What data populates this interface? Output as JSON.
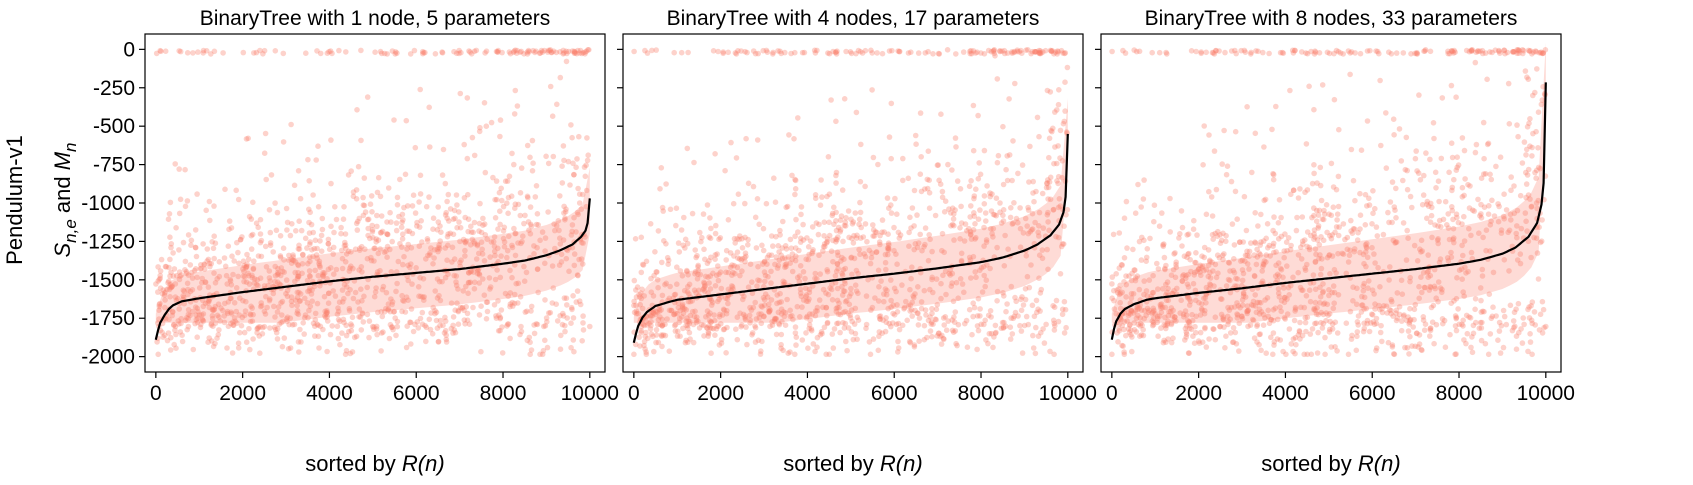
{
  "figure": {
    "row_label": "Pendulum-v1",
    "ylabel": {
      "pre": "S",
      "pre_sub": "n,e",
      "mid": " and ",
      "post": "M",
      "post_sub": "n"
    },
    "xlabel": {
      "pre": "sorted by ",
      "italic": "R(n)"
    }
  },
  "colors": {
    "points": "#fa7f6b",
    "median_line": "#000000",
    "background": "#ffffff"
  },
  "chart_data": [
    {
      "type": "scatter",
      "title": "BinaryTree with 1 node, 5 parameters",
      "xlim": [
        -250,
        10350
      ],
      "ylim": [
        -2100,
        100
      ],
      "x_ticks": [
        0,
        2000,
        4000,
        6000,
        8000,
        10000
      ],
      "x_tick_labels": [
        "0",
        "2000",
        "4000",
        "6000",
        "8000",
        "10000"
      ],
      "y_ticks": [
        0,
        -250,
        -500,
        -750,
        -1000,
        -1250,
        -1500,
        -1750,
        -2000
      ],
      "y_tick_labels": [
        "0",
        "-250",
        "-500",
        "-750",
        "-1000",
        "-1250",
        "-1500",
        "-1750",
        "-2000"
      ],
      "series": [
        {
          "role": "episode returns S_{n,e}",
          "style": "points",
          "x_range": [
            0,
            10000
          ],
          "y_range": [
            -1980,
            -5
          ],
          "dense_band": [
            -1750,
            -1000
          ]
        },
        {
          "role": "mean return M_n",
          "style": "line",
          "x": [
            0,
            50,
            100,
            200,
            300,
            400,
            600,
            1000,
            2000,
            3000,
            4000,
            5000,
            6000,
            7000,
            8000,
            8500,
            9000,
            9300,
            9600,
            9800,
            9900,
            9950,
            10000
          ],
          "y": [
            -1890,
            -1830,
            -1780,
            -1730,
            -1690,
            -1665,
            -1640,
            -1620,
            -1580,
            -1545,
            -1510,
            -1480,
            -1455,
            -1430,
            -1395,
            -1375,
            -1340,
            -1310,
            -1270,
            -1220,
            -1180,
            -1130,
            -970
          ]
        }
      ]
    },
    {
      "type": "scatter",
      "title": "BinaryTree with 4 nodes, 17 parameters",
      "xlim": [
        -250,
        10350
      ],
      "ylim": [
        -2100,
        100
      ],
      "x_ticks": [
        0,
        2000,
        4000,
        6000,
        8000,
        10000
      ],
      "x_tick_labels": [
        "0",
        "2000",
        "4000",
        "6000",
        "8000",
        "10000"
      ],
      "y_ticks": [
        0,
        -250,
        -500,
        -750,
        -1000,
        -1250,
        -1500,
        -1750,
        -2000
      ],
      "series": [
        {
          "role": "episode returns S_{n,e}",
          "style": "points",
          "x_range": [
            0,
            10000
          ],
          "y_range": [
            -1980,
            -5
          ],
          "dense_band": [
            -1700,
            -900
          ]
        },
        {
          "role": "mean return M_n",
          "style": "line",
          "x": [
            0,
            50,
            100,
            200,
            300,
            500,
            800,
            1000,
            2000,
            3000,
            4000,
            5000,
            6000,
            7000,
            8000,
            8500,
            9000,
            9300,
            9600,
            9800,
            9900,
            9950,
            10000
          ],
          "y": [
            -1910,
            -1850,
            -1800,
            -1745,
            -1710,
            -1670,
            -1645,
            -1630,
            -1595,
            -1560,
            -1525,
            -1490,
            -1460,
            -1425,
            -1385,
            -1355,
            -1310,
            -1270,
            -1210,
            -1140,
            -1060,
            -960,
            -550
          ]
        }
      ]
    },
    {
      "type": "scatter",
      "title": "BinaryTree with 8 nodes, 33 parameters",
      "xlim": [
        -250,
        10350
      ],
      "ylim": [
        -2100,
        100
      ],
      "x_ticks": [
        0,
        2000,
        4000,
        6000,
        8000,
        10000
      ],
      "x_tick_labels": [
        "0",
        "2000",
        "4000",
        "6000",
        "8000",
        "10000"
      ],
      "y_ticks": [
        0,
        -250,
        -500,
        -750,
        -1000,
        -1250,
        -1500,
        -1750,
        -2000
      ],
      "series": [
        {
          "role": "episode returns S_{n,e}",
          "style": "points",
          "x_range": [
            0,
            10000
          ],
          "y_range": [
            -1980,
            -5
          ],
          "dense_band": [
            -1700,
            -800
          ]
        },
        {
          "role": "mean return M_n",
          "style": "line",
          "x": [
            0,
            50,
            100,
            200,
            300,
            500,
            800,
            1000,
            2000,
            3000,
            4000,
            5000,
            6000,
            7000,
            8000,
            8500,
            9000,
            9300,
            9600,
            9800,
            9900,
            9950,
            10000
          ],
          "y": [
            -1890,
            -1820,
            -1770,
            -1720,
            -1690,
            -1660,
            -1630,
            -1620,
            -1585,
            -1555,
            -1520,
            -1490,
            -1460,
            -1430,
            -1395,
            -1370,
            -1330,
            -1290,
            -1220,
            -1130,
            -1010,
            -870,
            -215
          ]
        }
      ]
    }
  ]
}
